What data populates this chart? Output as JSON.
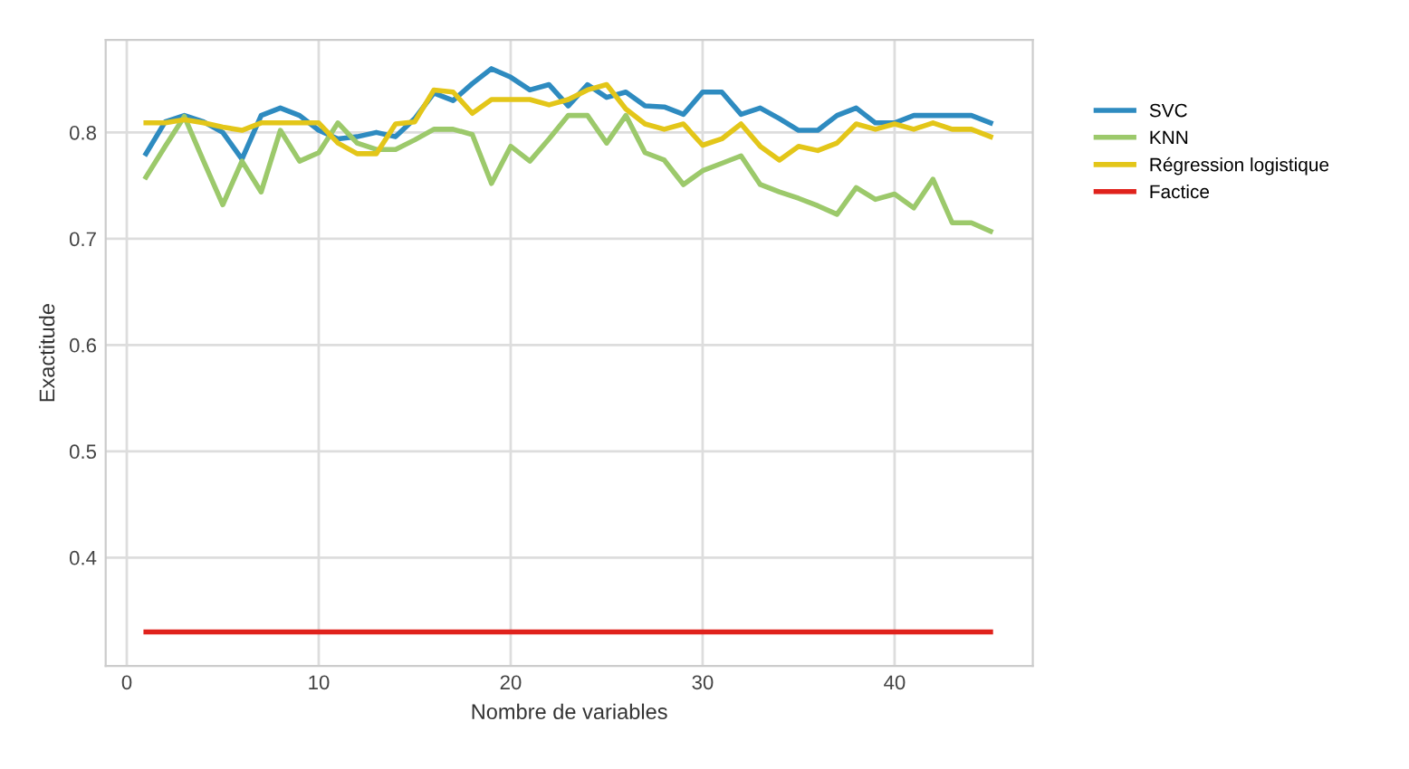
{
  "chart_data": {
    "type": "line",
    "xlabel": "Nombre de variables",
    "ylabel": "Exactitude",
    "x": [
      1,
      2,
      3,
      4,
      5,
      6,
      7,
      8,
      9,
      10,
      11,
      12,
      13,
      14,
      15,
      16,
      17,
      18,
      19,
      20,
      21,
      22,
      23,
      24,
      25,
      26,
      27,
      28,
      29,
      30,
      31,
      32,
      33,
      34,
      35,
      36,
      37,
      38,
      39,
      40,
      41,
      42,
      43,
      44,
      45
    ],
    "series": [
      {
        "name": "SVC",
        "color": "#2e8bc0",
        "values": [
          0.78,
          0.81,
          0.816,
          0.81,
          0.8,
          0.775,
          0.816,
          0.823,
          0.816,
          0.802,
          0.794,
          0.796,
          0.8,
          0.796,
          0.813,
          0.837,
          0.83,
          0.846,
          0.86,
          0.852,
          0.84,
          0.845,
          0.825,
          0.845,
          0.833,
          0.838,
          0.825,
          0.824,
          0.817,
          0.838,
          0.838,
          0.817,
          0.823,
          0.813,
          0.802,
          0.802,
          0.816,
          0.823,
          0.809,
          0.809,
          0.816,
          0.816,
          0.816,
          0.816,
          0.809
        ]
      },
      {
        "name": "KNN",
        "color": "#9cc96b",
        "values": [
          0.758,
          0.787,
          0.815,
          0.773,
          0.732,
          0.773,
          0.744,
          0.802,
          0.773,
          0.781,
          0.809,
          0.79,
          0.784,
          0.784,
          0.793,
          0.803,
          0.803,
          0.798,
          0.752,
          0.787,
          0.773,
          0.794,
          0.816,
          0.816,
          0.79,
          0.816,
          0.781,
          0.774,
          0.751,
          0.764,
          0.771,
          0.778,
          0.751,
          0.744,
          0.738,
          0.731,
          0.723,
          0.748,
          0.737,
          0.742,
          0.729,
          0.756,
          0.715,
          0.715,
          0.707
        ]
      },
      {
        "name": "Régression logistique",
        "color": "#e3c619",
        "values": [
          0.809,
          0.809,
          0.812,
          0.809,
          0.805,
          0.802,
          0.809,
          0.809,
          0.809,
          0.809,
          0.79,
          0.78,
          0.78,
          0.808,
          0.81,
          0.84,
          0.838,
          0.818,
          0.831,
          0.831,
          0.831,
          0.826,
          0.831,
          0.84,
          0.845,
          0.822,
          0.808,
          0.803,
          0.808,
          0.788,
          0.794,
          0.808,
          0.787,
          0.774,
          0.787,
          0.783,
          0.79,
          0.808,
          0.803,
          0.808,
          0.803,
          0.809,
          0.803,
          0.803,
          0.796
        ]
      },
      {
        "name": "Factice",
        "color": "#e0221c",
        "values": [
          0.33,
          0.33,
          0.33,
          0.33,
          0.33,
          0.33,
          0.33,
          0.33,
          0.33,
          0.33,
          0.33,
          0.33,
          0.33,
          0.33,
          0.33,
          0.33,
          0.33,
          0.33,
          0.33,
          0.33,
          0.33,
          0.33,
          0.33,
          0.33,
          0.33,
          0.33,
          0.33,
          0.33,
          0.33,
          0.33,
          0.33,
          0.33,
          0.33,
          0.33,
          0.33,
          0.33,
          0.33,
          0.33,
          0.33,
          0.33,
          0.33,
          0.33,
          0.33,
          0.33,
          0.33
        ]
      }
    ],
    "xlim": [
      -1.1,
      47.2
    ],
    "ylim": [
      0.298,
      0.887
    ],
    "xticks": [
      0,
      10,
      20,
      30,
      40
    ],
    "yticks": [
      0.4,
      0.5,
      0.6,
      0.7,
      0.8
    ],
    "grid": true,
    "legend": "right",
    "marker": "none",
    "line_style": "solid"
  }
}
